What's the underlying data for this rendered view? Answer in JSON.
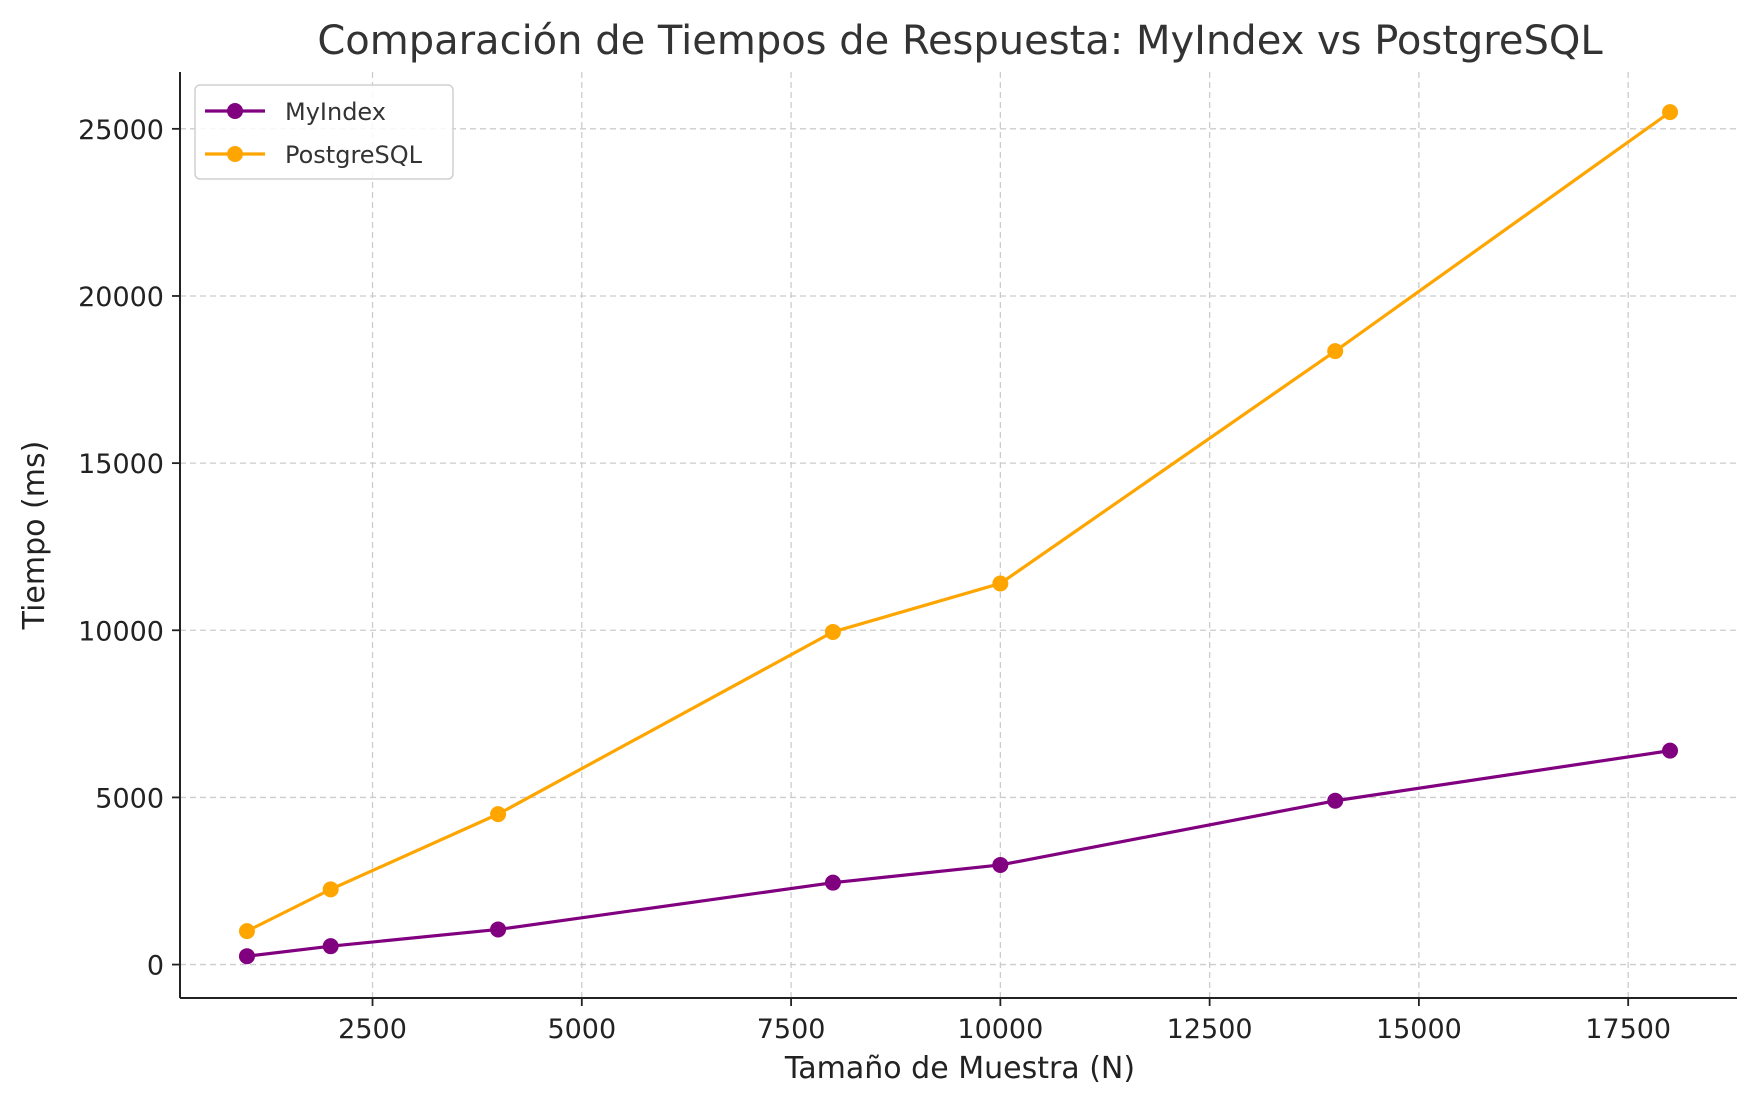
{
  "chart_data": {
    "type": "line",
    "title": "Comparación de Tiempos de Respuesta: MyIndex vs PostgreSQL",
    "xlabel": "Tamaño de Muestra (N)",
    "ylabel": "Tiempo (ms)",
    "x": [
      1000,
      2000,
      4000,
      8000,
      10000,
      14000,
      18000
    ],
    "xlim": [
      200,
      18800
    ],
    "ylim": [
      -1000,
      26700
    ],
    "xticks": [
      2500,
      5000,
      7500,
      10000,
      12500,
      15000,
      17500
    ],
    "yticks": [
      0,
      5000,
      10000,
      15000,
      20000,
      25000
    ],
    "grid": true,
    "legend_position": "top-left",
    "series": [
      {
        "name": "MyIndex",
        "color": "#800080",
        "values": [
          250,
          550,
          1050,
          2450,
          2980,
          4900,
          6400
        ]
      },
      {
        "name": "PostgreSQL",
        "color": "#FFA500",
        "values": [
          1000,
          2250,
          4500,
          9950,
          11400,
          18350,
          25500
        ]
      }
    ]
  }
}
